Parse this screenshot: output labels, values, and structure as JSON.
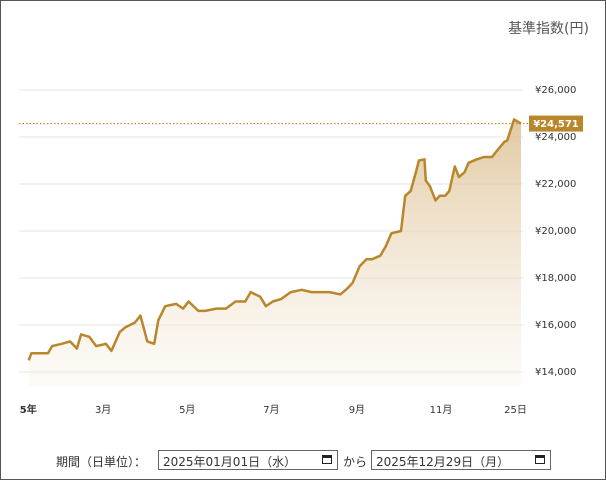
{
  "chart_data": {
    "type": "line",
    "axis_title": "基準指数(円)",
    "x": [
      "2025-01-06",
      "2025-01-08",
      "2025-01-20",
      "2025-01-23",
      "2025-01-30",
      "2025-02-05",
      "2025-02-10",
      "2025-02-13",
      "2025-02-19",
      "2025-02-24",
      "2025-03-03",
      "2025-03-07",
      "2025-03-13",
      "2025-03-17",
      "2025-03-24",
      "2025-03-28",
      "2025-04-02",
      "2025-04-07",
      "2025-04-10",
      "2025-04-15",
      "2025-04-23",
      "2025-04-28",
      "2025-05-02",
      "2025-05-09",
      "2025-05-14",
      "2025-05-22",
      "2025-05-29",
      "2025-06-05",
      "2025-06-12",
      "2025-06-16",
      "2025-06-23",
      "2025-06-27",
      "2025-07-02",
      "2025-07-08",
      "2025-07-15",
      "2025-07-23",
      "2025-07-30",
      "2025-08-05",
      "2025-08-12",
      "2025-08-20",
      "2025-08-25",
      "2025-08-29",
      "2025-09-03",
      "2025-09-08",
      "2025-09-12",
      "2025-09-18",
      "2025-09-22",
      "2025-09-26",
      "2025-10-03",
      "2025-10-06",
      "2025-10-10",
      "2025-10-14",
      "2025-10-16",
      "2025-10-20",
      "2025-10-21",
      "2025-10-24",
      "2025-10-28",
      "2025-10-31",
      "2025-11-04",
      "2025-11-07",
      "2025-11-11",
      "2025-11-14",
      "2025-11-18",
      "2025-11-21",
      "2025-11-27",
      "2025-12-02",
      "2025-12-08",
      "2025-12-12",
      "2025-12-17",
      "2025-12-19",
      "2025-12-24",
      "2025-12-29"
    ],
    "series": [
      {
        "color": "#b8862b",
        "values": [
          14500,
          14800,
          14800,
          15100,
          15200,
          15300,
          15000,
          15600,
          15500,
          15100,
          15200,
          14900,
          15700,
          15900,
          16100,
          16400,
          15300,
          15200,
          16200,
          16800,
          16900,
          16700,
          17000,
          16600,
          16600,
          16700,
          16700,
          17000,
          17000,
          17400,
          17200,
          16800,
          17000,
          17100,
          17400,
          17500,
          17400,
          17400,
          17400,
          17300,
          17550,
          17800,
          18500,
          18800,
          18800,
          18950,
          19350,
          19900,
          20000,
          21500,
          21700,
          22550,
          23000,
          23050,
          22150,
          21900,
          21300,
          21500,
          21500,
          21700,
          22750,
          22300,
          22500,
          22900,
          23050,
          23150,
          23150,
          23450,
          23800,
          23850,
          24750,
          24571
        ]
      }
    ],
    "xlim": [
      "2024-12-30",
      "2025-12-29"
    ],
    "xticks": [
      {
        "value": "2025-01-01",
        "label": "5年"
      },
      {
        "value": "2025-03-01",
        "label": "3月"
      },
      {
        "value": "2025-05-01",
        "label": "5月"
      },
      {
        "value": "2025-07-01",
        "label": "7月"
      },
      {
        "value": "2025-09-01",
        "label": "9月"
      },
      {
        "value": "2025-11-01",
        "label": "11月"
      },
      {
        "value": "2025-12-25",
        "label": "25日"
      }
    ],
    "ylim": [
      13000,
      27000
    ],
    "yticks": [
      {
        "value": 14000,
        "label": "¥14,000"
      },
      {
        "value": 16000,
        "label": "¥16,000"
      },
      {
        "value": 18000,
        "label": "¥18,000"
      },
      {
        "value": 20000,
        "label": "¥20,000"
      },
      {
        "value": 22000,
        "label": "¥22,000"
      },
      {
        "value": 24000,
        "label": "¥24,000"
      },
      {
        "value": 26000,
        "label": "¥26,000"
      }
    ],
    "grid": true,
    "last_value": {
      "value": 24571,
      "label": "¥24,571"
    }
  },
  "period_filter": {
    "label": "期間（日単位）：",
    "start": "2025年01月01日（水）",
    "separator": "から",
    "end": "2025年12月29日（月）"
  }
}
